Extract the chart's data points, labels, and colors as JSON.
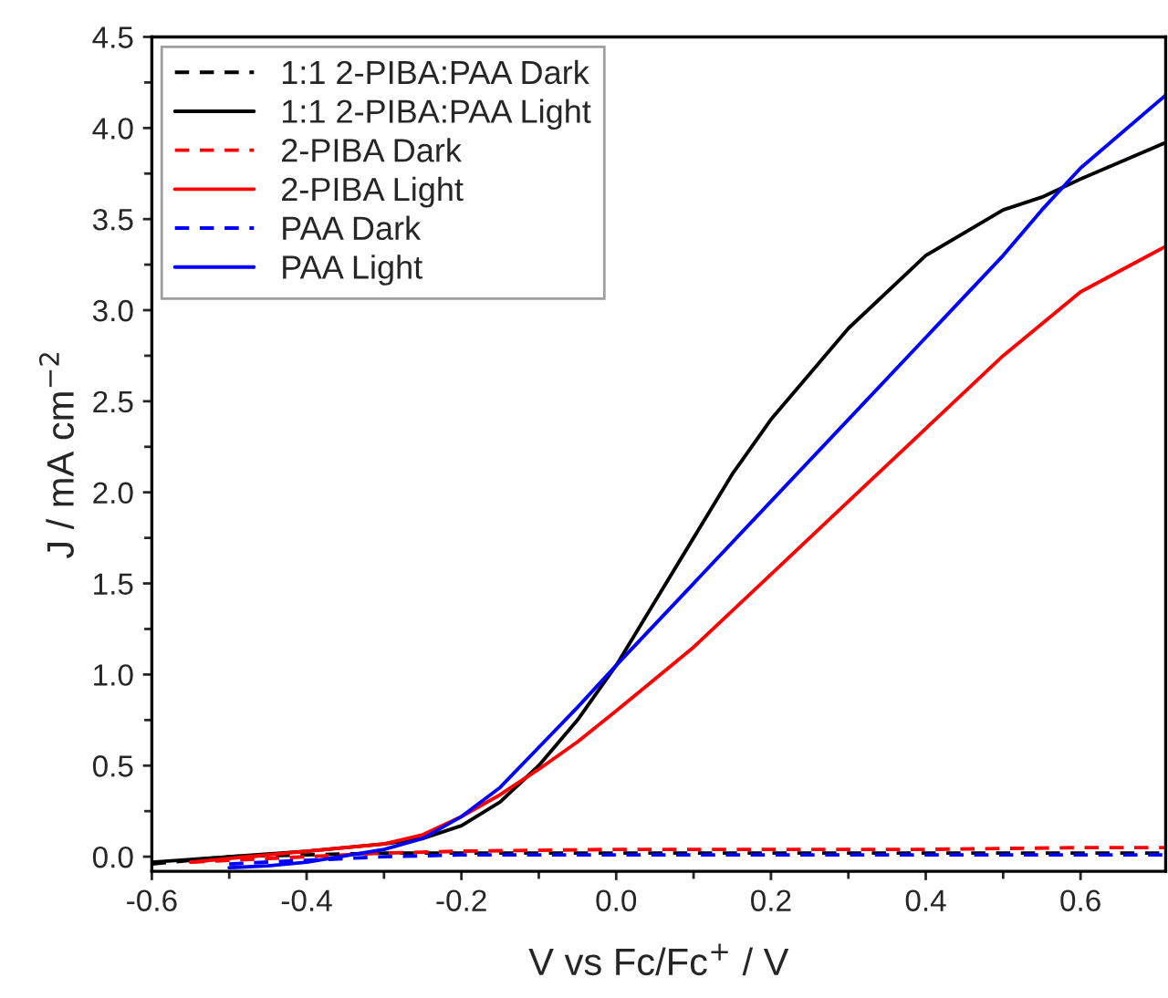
{
  "chart_data": {
    "type": "line",
    "xlabel": "V vs Fc/Fc$^{+}$ / V",
    "ylabel": "J / mA cm$^{−2}$",
    "xlim": [
      -0.6,
      0.71
    ],
    "xticks": [
      {
        "value": -0.6,
        "label": "-0.6"
      },
      {
        "value": -0.4,
        "label": "-0.4"
      },
      {
        "value": -0.2,
        "label": "-0.2"
      },
      {
        "value": 0,
        "label": "0.0"
      },
      {
        "value": 0.2,
        "label": "0.2"
      },
      {
        "value": 0.4,
        "label": "0.4"
      },
      {
        "value": 0.6,
        "label": "0.6"
      }
    ],
    "ylim": [
      -0.08,
      4.5
    ],
    "yticks": [
      {
        "value": 0,
        "label": "0.0"
      },
      {
        "value": 0.5,
        "label": "0.5"
      },
      {
        "value": 1,
        "label": "1.0"
      },
      {
        "value": 1.5,
        "label": "1.5"
      },
      {
        "value": 2,
        "label": "2.0"
      },
      {
        "value": 2.5,
        "label": "2.5"
      },
      {
        "value": 3,
        "label": "3.0"
      },
      {
        "value": 3.5,
        "label": "3.5"
      },
      {
        "value": 4,
        "label": "4.0"
      },
      {
        "value": 4.5,
        "label": "4.5"
      }
    ],
    "grid": false,
    "legend": "top left",
    "series": [
      {
        "name": "1:1 2-PIBA:PAA Dark",
        "color": "#000000",
        "line_style": "dashed",
        "x": [
          -0.6,
          -0.5,
          -0.4,
          -0.3,
          -0.2,
          0,
          0.2,
          0.4,
          0.6,
          0.71
        ],
        "values": [
          -0.04,
          0.0,
          0.01,
          0.02,
          0.02,
          0.02,
          0.02,
          0.02,
          0.02,
          0.02
        ]
      },
      {
        "name": "1:1 2-PIBA:PAA Light",
        "color": "#000000",
        "line_style": "solid",
        "x": [
          -0.6,
          -0.5,
          -0.4,
          -0.3,
          -0.25,
          -0.2,
          -0.15,
          -0.1,
          -0.05,
          0,
          0.05,
          0.1,
          0.15,
          0.2,
          0.3,
          0.4,
          0.5,
          0.55,
          0.6,
          0.71
        ],
        "values": [
          -0.03,
          0.0,
          0.03,
          0.07,
          0.1,
          0.17,
          0.3,
          0.5,
          0.75,
          1.05,
          1.4,
          1.75,
          2.1,
          2.4,
          2.9,
          3.3,
          3.55,
          3.62,
          3.72,
          3.92
        ]
      },
      {
        "name": "2-PIBA Dark",
        "color": "#ff0000",
        "line_style": "dashed",
        "x": [
          -0.55,
          -0.4,
          -0.3,
          -0.2,
          0,
          0.2,
          0.4,
          0.6,
          0.71
        ],
        "values": [
          -0.03,
          0.0,
          0.02,
          0.03,
          0.04,
          0.04,
          0.04,
          0.05,
          0.05
        ]
      },
      {
        "name": "2-PIBA Light",
        "color": "#ff0000",
        "line_style": "solid",
        "x": [
          -0.55,
          -0.5,
          -0.4,
          -0.3,
          -0.25,
          -0.2,
          -0.15,
          -0.1,
          -0.05,
          0,
          0.1,
          0.2,
          0.3,
          0.4,
          0.5,
          0.6,
          0.71
        ],
        "values": [
          -0.03,
          -0.01,
          0.03,
          0.07,
          0.12,
          0.22,
          0.34,
          0.48,
          0.63,
          0.8,
          1.15,
          1.55,
          1.95,
          2.35,
          2.75,
          3.1,
          3.35
        ]
      },
      {
        "name": "PAA Dark",
        "color": "#0000ff",
        "line_style": "dashed",
        "x": [
          -0.5,
          -0.4,
          -0.3,
          -0.2,
          0,
          0.2,
          0.4,
          0.6,
          0.71
        ],
        "values": [
          -0.04,
          -0.02,
          0.0,
          0.01,
          0.01,
          0.01,
          0.01,
          0.01,
          0.01
        ]
      },
      {
        "name": "PAA Light",
        "color": "#0000ff",
        "line_style": "solid",
        "x": [
          -0.5,
          -0.45,
          -0.4,
          -0.3,
          -0.25,
          -0.2,
          -0.15,
          -0.1,
          -0.05,
          0,
          0.1,
          0.2,
          0.3,
          0.4,
          0.5,
          0.55,
          0.6,
          0.71
        ],
        "values": [
          -0.06,
          -0.05,
          -0.03,
          0.04,
          0.1,
          0.22,
          0.38,
          0.6,
          0.82,
          1.05,
          1.5,
          1.95,
          2.4,
          2.85,
          3.3,
          3.55,
          3.78,
          4.18
        ]
      }
    ]
  }
}
